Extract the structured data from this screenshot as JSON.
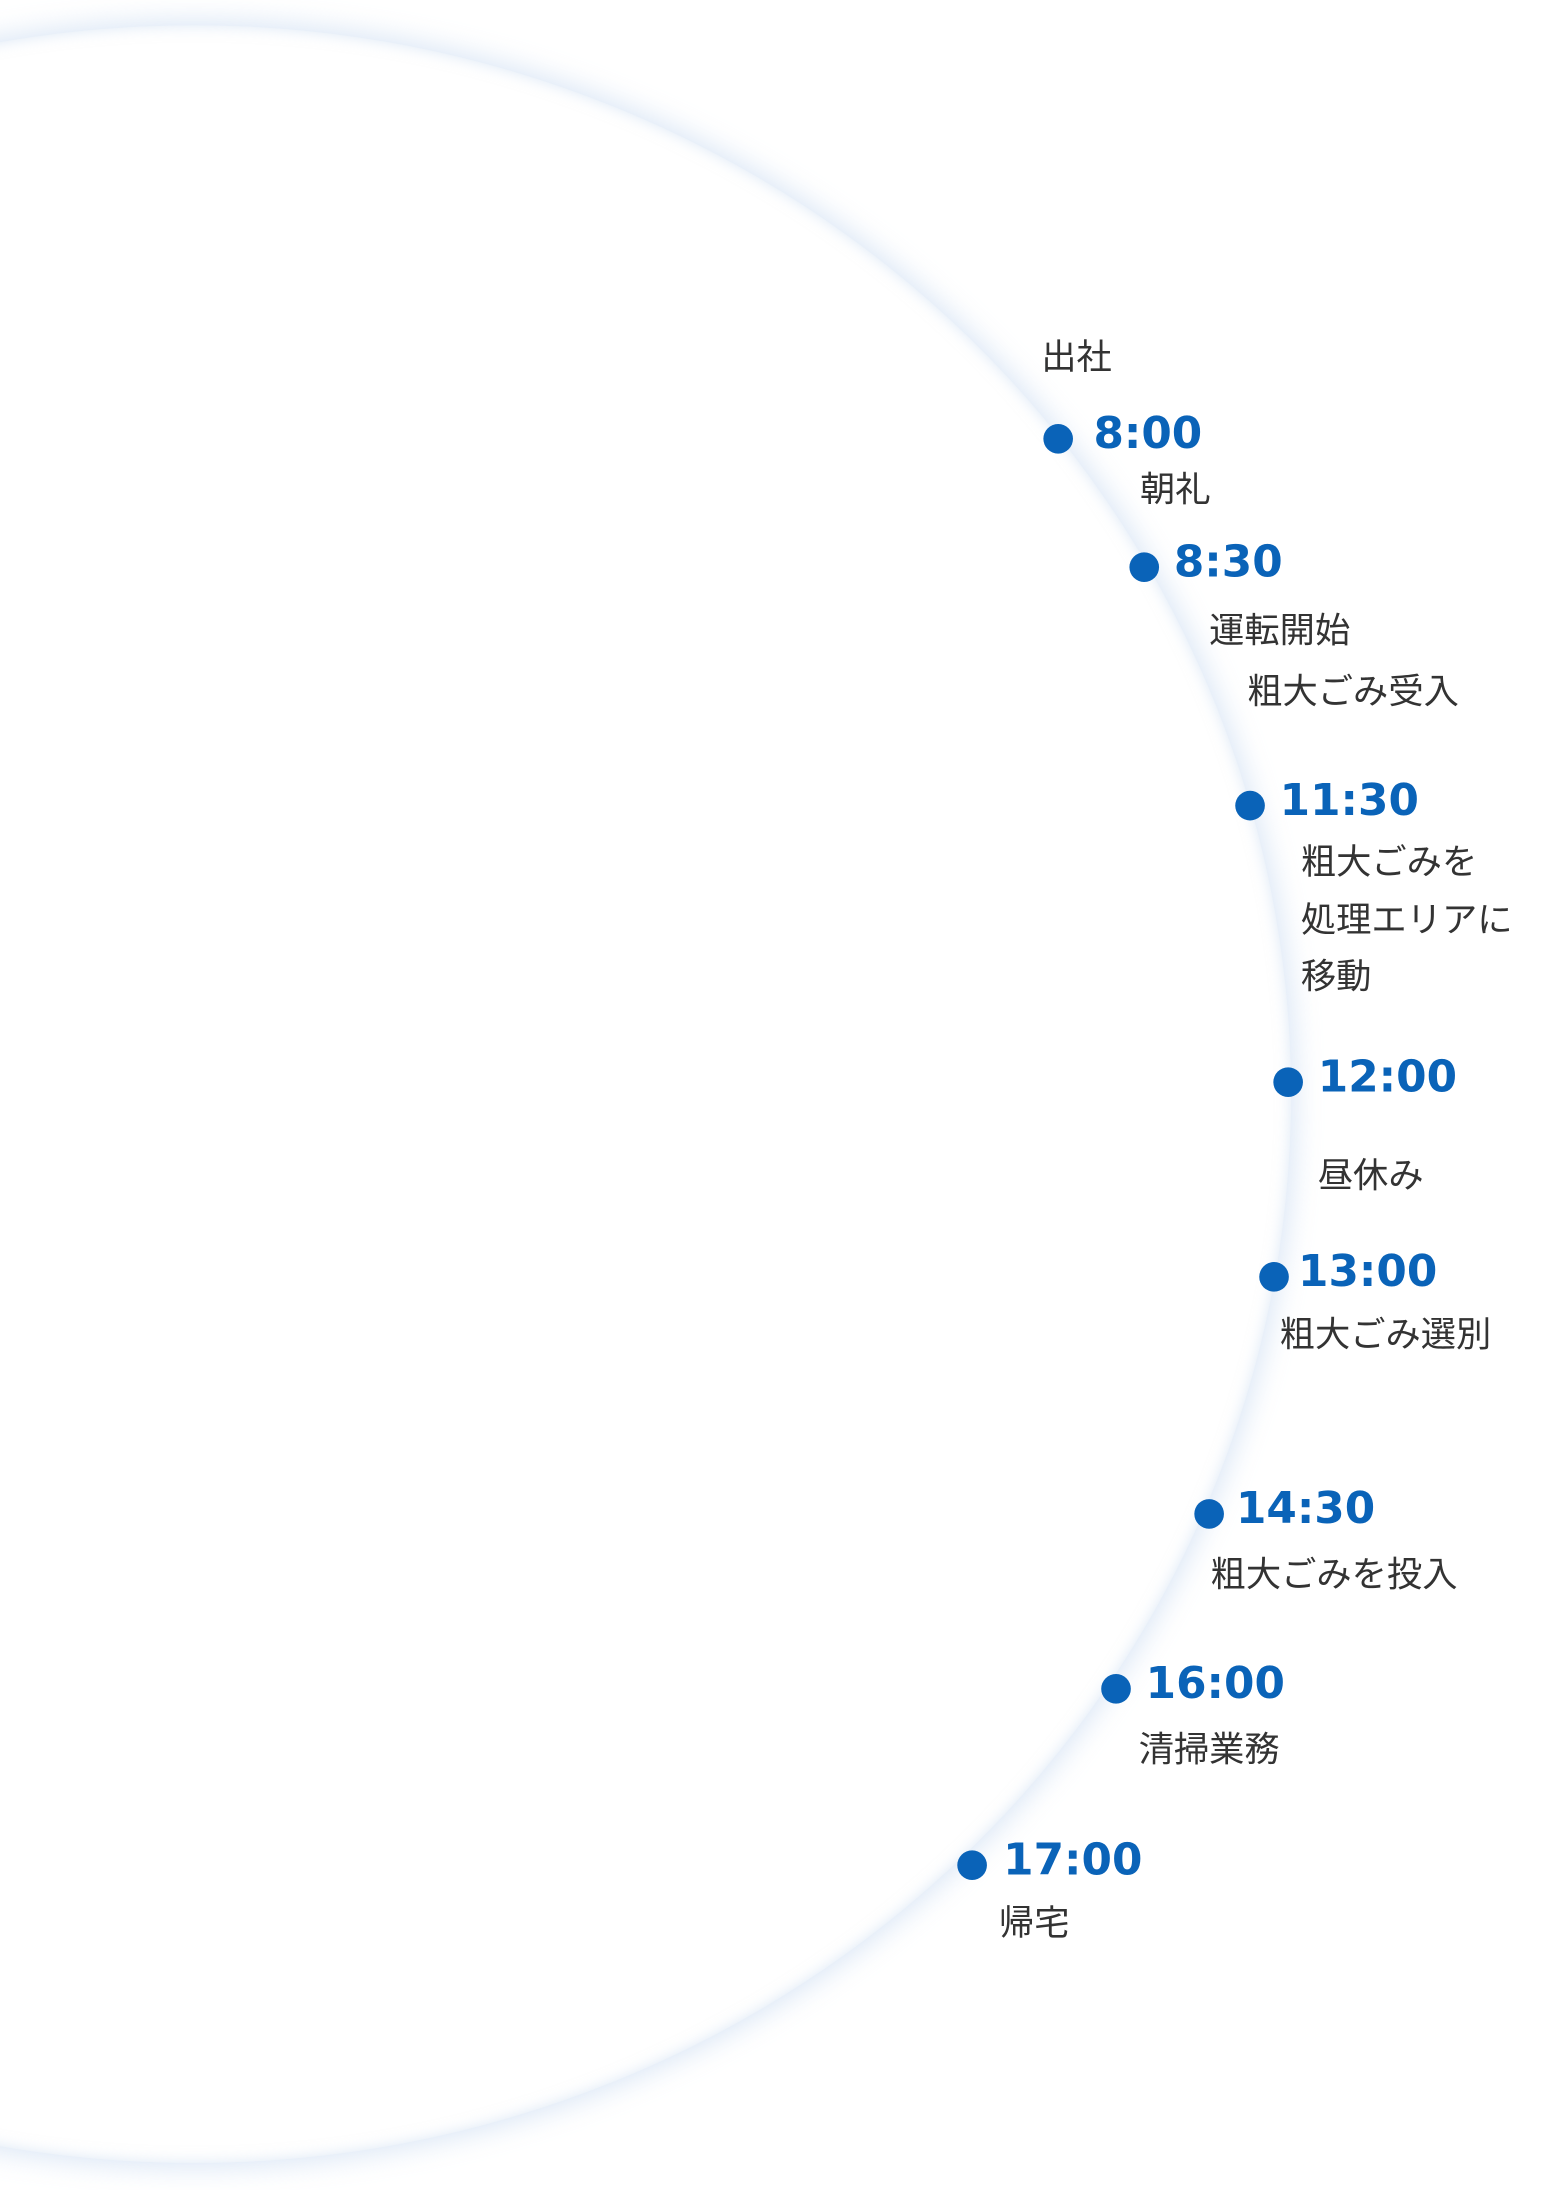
{
  "intro": "出社",
  "items": [
    {
      "time": "8:00",
      "lines": [
        "朝礼"
      ]
    },
    {
      "time": "8:30",
      "lines": [
        "運転開始",
        "粗大ごみ受入"
      ]
    },
    {
      "time": "11:30",
      "lines": [
        "粗大ごみを",
        "処理エリアに",
        "移動"
      ]
    },
    {
      "time": "12:00",
      "lines": [
        "昼休み"
      ]
    },
    {
      "time": "13:00",
      "lines": [
        "粗大ごみ選別"
      ]
    },
    {
      "time": "14:30",
      "lines": [
        "粗大ごみを投入"
      ]
    },
    {
      "time": "16:00",
      "lines": [
        "清掃業務"
      ]
    },
    {
      "time": "17:00",
      "lines": [
        "帰宅"
      ]
    }
  ]
}
